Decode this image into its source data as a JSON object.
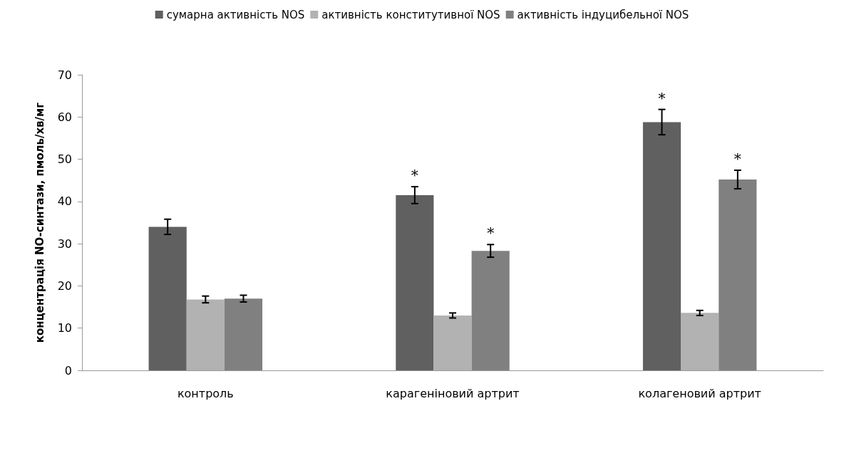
{
  "chart_data": {
    "type": "bar",
    "ylabel": "концентрація NO-синтази, пмоль/хв/мг",
    "categories": [
      "контроль",
      "карагеніновий артрит",
      "колагеновий артрит"
    ],
    "series": [
      {
        "name": "сумарна активність NOS",
        "color": "#606060",
        "values": [
          34,
          41.5,
          58.8
        ],
        "errors": [
          1.8,
          2,
          3
        ],
        "value_labels": [
          null,
          "*",
          "*"
        ]
      },
      {
        "name": "активність конститутивної NOS",
        "color": "#b2b2b2",
        "values": [
          16.8,
          13,
          13.6
        ],
        "errors": [
          0.8,
          0.6,
          0.6
        ]
      },
      {
        "name": "активність індуцибельної NOS",
        "color": "#808080",
        "values": [
          17,
          28.3,
          45.2
        ],
        "errors": [
          0.8,
          1.5,
          2.2
        ],
        "value_labels": [
          null,
          "*",
          "*"
        ]
      }
    ],
    "ylim": [
      0,
      70
    ],
    "yticks": [
      0,
      10,
      20,
      30,
      40,
      50,
      60,
      70
    ],
    "grid": false,
    "legend": "top"
  }
}
